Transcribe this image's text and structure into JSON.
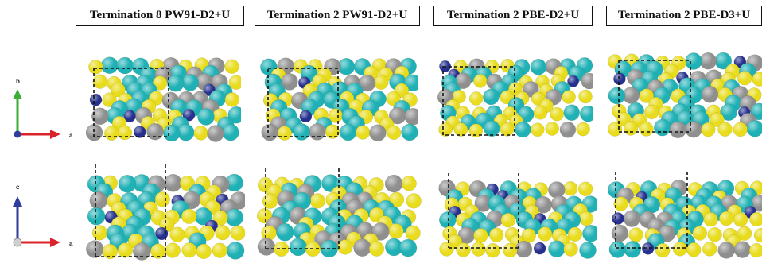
{
  "panels": [
    {
      "title": "Termination 8 PW91-D2+U"
    },
    {
      "title": "Termination 2 PW91-D2+U"
    },
    {
      "title": "Termination 2 PBE-D2+U"
    },
    {
      "title": "Termination 2 PBE-D3+U"
    }
  ],
  "axes": {
    "top": {
      "horizontal": "a",
      "vertical": "b"
    },
    "bottom": {
      "horizontal": "a",
      "vertical": "c"
    }
  },
  "colors": {
    "yellow": "#e8dc1c",
    "gray": "#8f8f8f",
    "teal": "#1fb1b5",
    "navy": "#26308f",
    "axis_red": "#d8242a",
    "axis_green": "#3cae3a",
    "axis_blue": "#2f3d9c"
  }
}
